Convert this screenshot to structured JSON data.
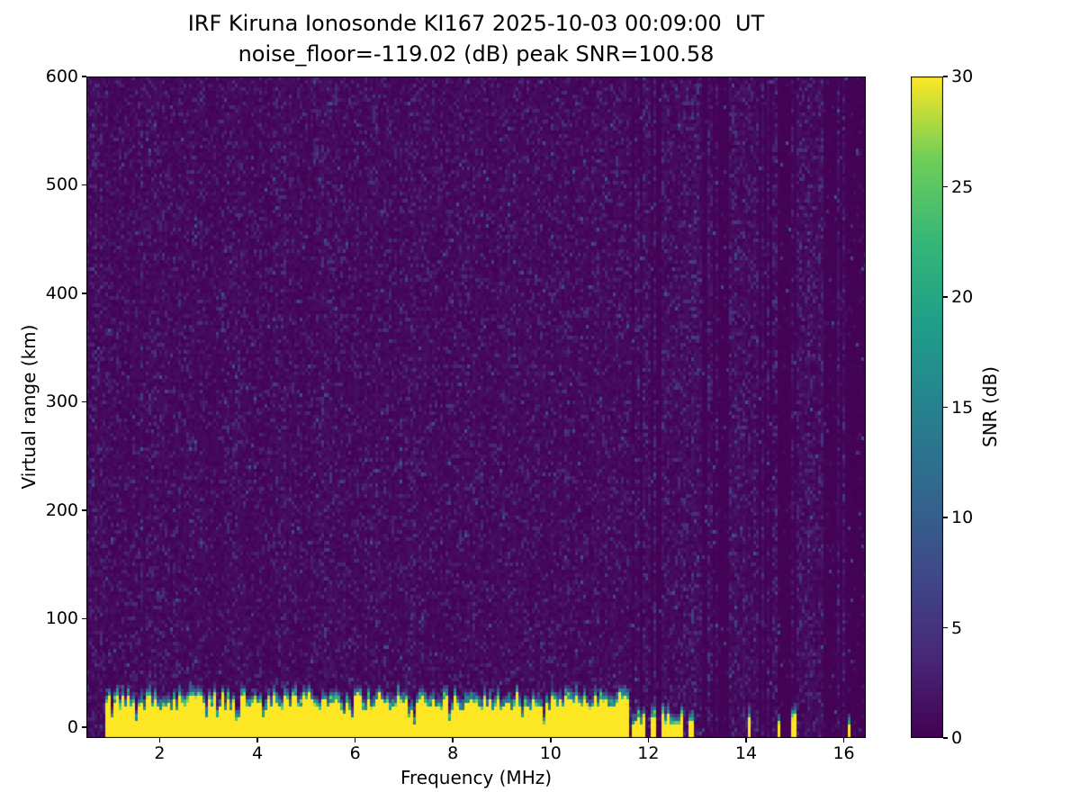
{
  "chart_data": {
    "type": "heatmap",
    "title": "IRF Kiruna Ionosonde KI167 2025-10-03 00:09:00  UT",
    "subtitle": "noise_floor=-119.02 (dB) peak SNR=100.58",
    "xlabel": "Frequency (MHz)",
    "ylabel": "Virtual range (km)",
    "xlim": [
      0.5,
      16.45
    ],
    "ylim": [
      -10,
      600
    ],
    "xticks": [
      2,
      4,
      6,
      8,
      10,
      12,
      14,
      16
    ],
    "yticks": [
      0,
      100,
      200,
      300,
      400,
      500,
      600
    ],
    "grid": false,
    "colorbar": {
      "label": "SNR (dB)",
      "min": 0,
      "max": 30,
      "ticks": [
        0,
        5,
        10,
        15,
        20,
        25,
        30
      ],
      "colormap": "viridis",
      "min_color": "#440154",
      "max_color": "#fde725"
    },
    "features": {
      "description": "Ionogram: dark viridis background of speckle noise ~0-5 dB over full 0-600 km range; saturated ground-return band (SNR ~30 dB, yellow) hugging 0 km with ragged teal upper edge ~20-36 km; band continuous from 0.9 MHz up to ~11.6 MHz, then broken into intermittent narrow columns; vertical interference striping across 11.6-16.45 MHz region",
      "noise_floor_db": -119.02,
      "peak_snr_db": 100.58,
      "background_noise_db": [
        0,
        5
      ],
      "band_snr_db": 30,
      "band_min_mhz": 0.9,
      "band_top_km_range": [
        20,
        36
      ],
      "interference_start_mhz": 11.6,
      "dense_intermittent_until_mhz": 13.0
    }
  }
}
